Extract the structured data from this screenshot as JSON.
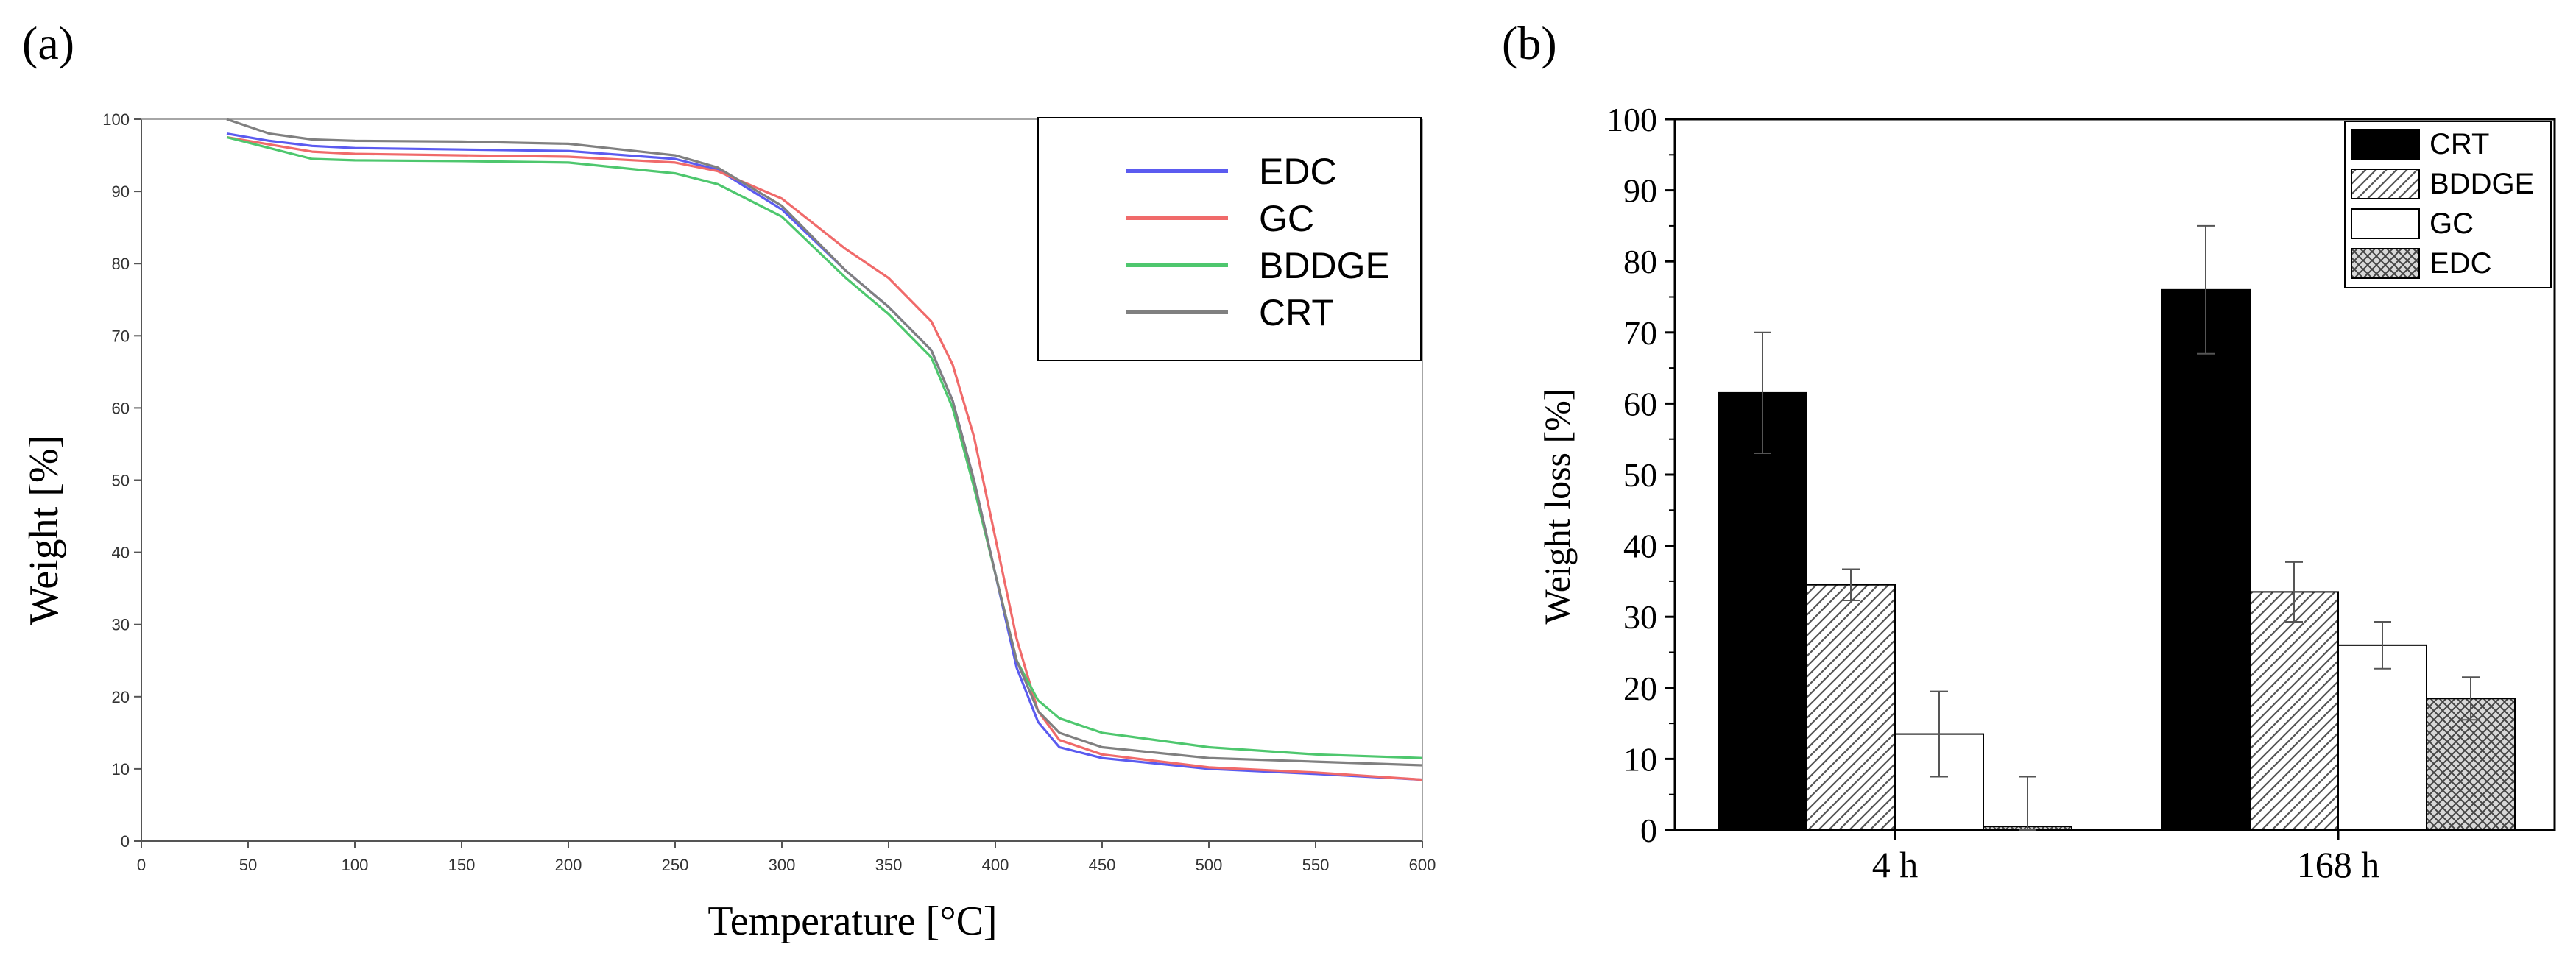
{
  "panels": {
    "a": {
      "label": "(a)"
    },
    "b": {
      "label": "(b)"
    }
  },
  "colors": {
    "EDC_line": "#5b5bf0",
    "GC_line": "#f06a6a",
    "BDDGE_line": "#4ec76e",
    "CRT_line": "#808080",
    "CRT_bar": "#000000",
    "bar_edge": "#000000"
  },
  "chart_data": [
    {
      "id": "tga",
      "type": "line",
      "title": "",
      "xlabel": "Temperature  [°C]",
      "ylabel": "Weight  [%]",
      "xlim": [
        0,
        600
      ],
      "ylim": [
        0,
        100
      ],
      "xticks": [
        "0",
        "50",
        "100",
        "150",
        "200",
        "250",
        "300",
        "350",
        "400",
        "450",
        "500",
        "550",
        "600"
      ],
      "yticks": [
        "0",
        "10",
        "20",
        "30",
        "40",
        "50",
        "60",
        "70",
        "80",
        "90",
        "100"
      ],
      "legend_position": "top-right",
      "series": [
        {
          "name": "EDC",
          "x": [
            40,
            60,
            80,
            100,
            150,
            200,
            250,
            270,
            300,
            330,
            350,
            370,
            380,
            390,
            400,
            410,
            420,
            430,
            450,
            500,
            550,
            600
          ],
          "y": [
            98,
            97,
            96.3,
            96,
            95.8,
            95.6,
            94.5,
            93,
            87.5,
            79,
            74,
            68,
            61,
            50,
            37,
            24,
            16.5,
            13,
            11.5,
            10,
            9.3,
            8.5
          ]
        },
        {
          "name": "GC",
          "x": [
            40,
            60,
            80,
            100,
            150,
            200,
            250,
            270,
            300,
            330,
            350,
            370,
            380,
            390,
            400,
            410,
            420,
            430,
            450,
            500,
            550,
            600
          ],
          "y": [
            97.5,
            96.5,
            95.5,
            95.2,
            95,
            94.8,
            94,
            92.8,
            89,
            82,
            78,
            72,
            66,
            56,
            42,
            28,
            18,
            14,
            12,
            10.2,
            9.5,
            8.5
          ]
        },
        {
          "name": "BDDGE",
          "x": [
            40,
            60,
            80,
            100,
            150,
            200,
            250,
            270,
            300,
            330,
            350,
            370,
            380,
            390,
            400,
            410,
            420,
            430,
            450,
            500,
            550,
            600
          ],
          "y": [
            97.5,
            96,
            94.5,
            94.3,
            94.2,
            94,
            92.5,
            91,
            86.5,
            78,
            73,
            67,
            60,
            49,
            37,
            25,
            19.5,
            17,
            15,
            13,
            12,
            11.5
          ]
        },
        {
          "name": "CRT",
          "x": [
            40,
            60,
            80,
            100,
            150,
            200,
            250,
            270,
            300,
            330,
            350,
            370,
            380,
            390,
            400,
            410,
            420,
            430,
            450,
            500,
            550,
            600
          ],
          "y": [
            100,
            98,
            97.2,
            97,
            96.9,
            96.6,
            95,
            93.3,
            88,
            79,
            74,
            68,
            61,
            50,
            37,
            25,
            18,
            15,
            13,
            11.5,
            11,
            10.5
          ]
        }
      ]
    },
    {
      "id": "weight_loss",
      "type": "bar",
      "title": "",
      "xlabel": "",
      "ylabel": "Weight loss [%]",
      "ylim": [
        0,
        100
      ],
      "yticks": [
        "0",
        "10",
        "20",
        "30",
        "40",
        "50",
        "60",
        "70",
        "80",
        "90",
        "100"
      ],
      "categories": [
        "4 h",
        "168 h"
      ],
      "legend_position": "top-right",
      "series": [
        {
          "name": "CRT",
          "values": [
            61.5,
            76
          ],
          "errors": [
            8.5,
            9
          ],
          "fill": "solid"
        },
        {
          "name": "BDDGE",
          "values": [
            34.5,
            33.5
          ],
          "errors": [
            2.2,
            4.2
          ],
          "fill": "hatch"
        },
        {
          "name": "GC",
          "values": [
            13.5,
            26
          ],
          "errors": [
            6,
            3.3
          ],
          "fill": "empty"
        },
        {
          "name": "EDC",
          "values": [
            0.5,
            18.5
          ],
          "errors": [
            7,
            3
          ],
          "fill": "crosshatch"
        }
      ]
    }
  ]
}
